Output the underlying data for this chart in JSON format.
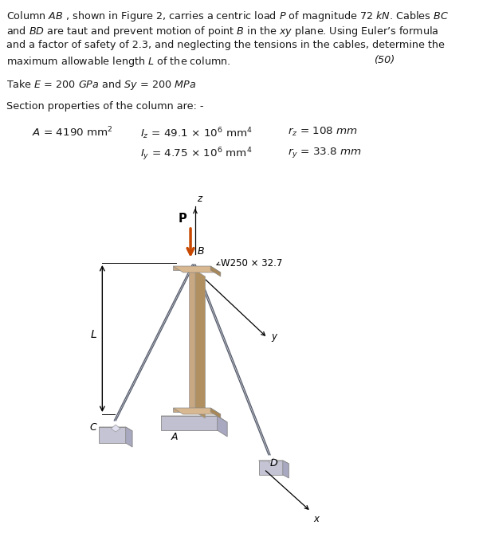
{
  "bg_color": "#ffffff",
  "text_color": "#1a1a1a",
  "arrow_color": "#c84800",
  "cable_color": "#5a6070",
  "column_front_color": "#c8a882",
  "column_side_color": "#b09070",
  "column_dark_color": "#907050",
  "base_light": "#c8c8d8",
  "base_top": "#d8d8e8",
  "base_shadow": "#a8a8b8",
  "anchor_light": "#d0d0e0",
  "anchor_top": "#e0e0ee",
  "line1": "Column $AB$ , shown in Figure 2, carries a centric load $P$ of magnitude 72 $kN$. Cables $BC$",
  "line2": "and $BD$ are taut and prevent motion of point $B$ in the $xy$ plane. Using Euler’s formula",
  "line3": "and a factor of safety of 2.3, and neglecting the tensions in the cables, determine the",
  "line4": "maximum allowable length $L$ of the column.",
  "line4b": "(50)",
  "line5": "Take $E$ = 200 $GPa$ and $Sy$ = 200 $MPa$",
  "line6": "Section properties of the column are: -",
  "col1_r1": "$A$ = 4190 mm$^2$",
  "col2_r1": "$I_z$ = 49.1 × 10$^6$ mm$^4$",
  "col3_r1": "$r_z$ = 108 $mm$",
  "col2_r2": "$I_y$ = 4.75 × 10$^6$ mm$^4$",
  "col3_r2": "$r_y$ = 33.8 $mm$",
  "W_label": "W250 × 32.7"
}
